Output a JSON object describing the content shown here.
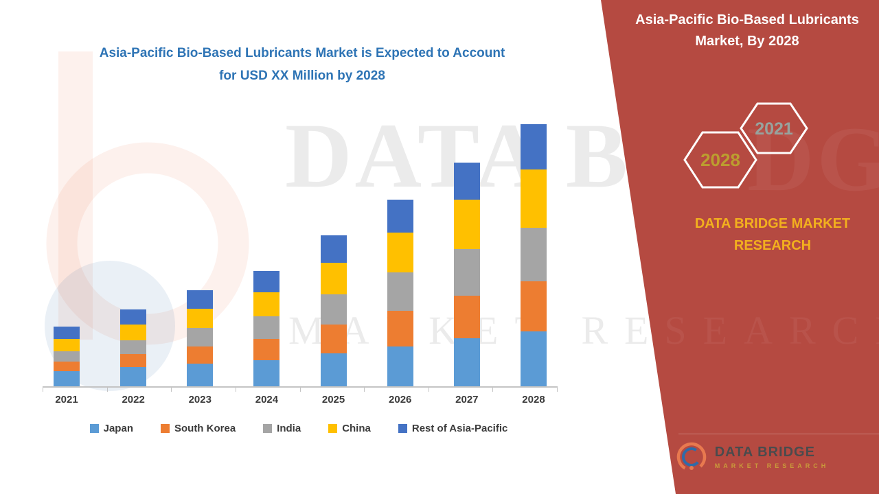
{
  "chart_data": {
    "type": "bar",
    "stacked": true,
    "title": "Asia-Pacific Bio-Based Lubricants Market is Expected to Account for USD XX Million by 2028",
    "xlabel": "",
    "ylabel": "",
    "ylim": [
      0,
      400
    ],
    "grid": false,
    "legend_position": "bottom",
    "categories": [
      "2021",
      "2022",
      "2023",
      "2024",
      "2025",
      "2026",
      "2027",
      "2028"
    ],
    "series": [
      {
        "name": "Japan",
        "color": "#5B9BD5",
        "values": [
          22,
          28,
          33,
          38,
          48,
          58,
          70,
          80
        ]
      },
      {
        "name": "South Korea",
        "color": "#ED7D31",
        "values": [
          14,
          19,
          25,
          31,
          42,
          52,
          62,
          73
        ]
      },
      {
        "name": "India",
        "color": "#A5A5A5",
        "values": [
          15,
          20,
          27,
          33,
          44,
          56,
          68,
          78
        ]
      },
      {
        "name": "China",
        "color": "#FFC000",
        "values": [
          18,
          23,
          28,
          35,
          46,
          58,
          72,
          85
        ]
      },
      {
        "name": "Rest of Asia-Pacific",
        "color": "#4472C4",
        "values": [
          18,
          22,
          27,
          31,
          40,
          48,
          54,
          66
        ]
      }
    ]
  },
  "left": {
    "title": "Asia-Pacific Bio-Based Lubricants Market is Expected to Account for USD XX Million by 2028"
  },
  "right_panel": {
    "title": "Asia-Pacific Bio-Based Lubricants Market, By 2028",
    "hexagon_front_label": "2028",
    "hexagon_back_label": "2021",
    "brand_text": "DATA BRIDGE MARKET RESEARCH",
    "colors": {
      "panel_red": "#B54A41",
      "brand_gold": "#F2B01E",
      "hex_front_text": "#BC9E2F",
      "hex_back_text": "#97A39E"
    }
  },
  "footer": {
    "name": "DATA BRIDGE",
    "sub": "MARKET RESEARCH"
  },
  "watermark": {
    "letters": "DATA BRIDGE",
    "mr": "MARKET RESEARCH",
    "ghost_letters": "DGE",
    "ghost_mr": "ESEARCH"
  }
}
